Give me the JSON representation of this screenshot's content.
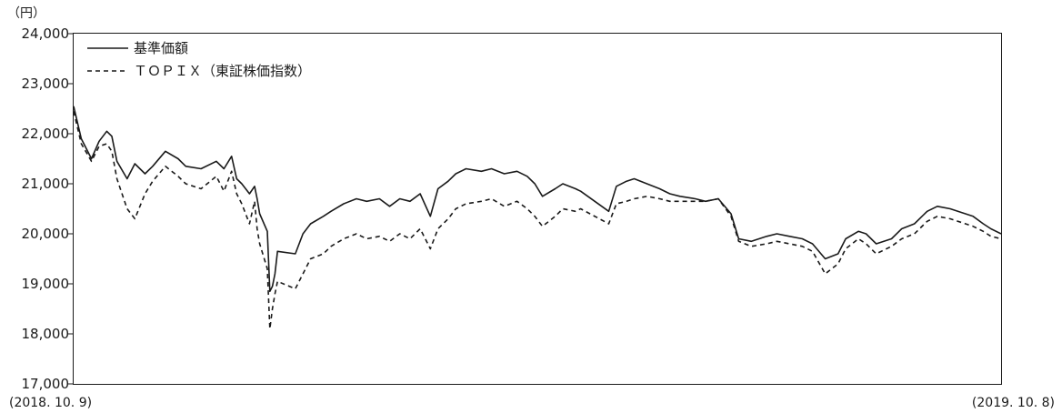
{
  "chart_data": {
    "type": "line",
    "y_unit_label": "（円）",
    "ylim": [
      17000,
      24000
    ],
    "y_ticks": [
      "17,000",
      "18,000",
      "19,000",
      "20,000",
      "21,000",
      "22,000",
      "23,000",
      "24,000"
    ],
    "y_tick_values": [
      17000,
      18000,
      19000,
      20000,
      21000,
      22000,
      23000,
      24000
    ],
    "x_start_label": "(2018. 10. 9)",
    "x_end_label": "(2019. 10. 8)",
    "x_range": [
      "2018-10-09",
      "2019-10-08"
    ],
    "grid": false,
    "legend_placement": "top-left",
    "series": [
      {
        "name": "基準価額",
        "line_style": "solid",
        "color": "#1a1a1a",
        "values": [
          [
            "2018-10-09",
            22550
          ],
          [
            "2018-10-12",
            21900
          ],
          [
            "2018-10-16",
            21500
          ],
          [
            "2018-10-19",
            21850
          ],
          [
            "2018-10-22",
            22050
          ],
          [
            "2018-10-24",
            21950
          ],
          [
            "2018-10-26",
            21450
          ],
          [
            "2018-10-30",
            21100
          ],
          [
            "2018-11-02",
            21400
          ],
          [
            "2018-11-06",
            21200
          ],
          [
            "2018-11-09",
            21350
          ],
          [
            "2018-11-14",
            21650
          ],
          [
            "2018-11-19",
            21500
          ],
          [
            "2018-11-22",
            21350
          ],
          [
            "2018-11-28",
            21300
          ],
          [
            "2018-12-04",
            21450
          ],
          [
            "2018-12-07",
            21300
          ],
          [
            "2018-12-10",
            21550
          ],
          [
            "2018-12-12",
            21100
          ],
          [
            "2018-12-14",
            21000
          ],
          [
            "2018-12-17",
            20800
          ],
          [
            "2018-12-19",
            20950
          ],
          [
            "2018-12-20",
            20700
          ],
          [
            "2018-12-21",
            20400
          ],
          [
            "2018-12-24",
            20050
          ],
          [
            "2018-12-25",
            18850
          ],
          [
            "2018-12-26",
            18950
          ],
          [
            "2018-12-27",
            19200
          ],
          [
            "2018-12-28",
            19650
          ],
          [
            "2019-01-04",
            19600
          ],
          [
            "2019-01-07",
            20000
          ],
          [
            "2019-01-10",
            20200
          ],
          [
            "2019-01-15",
            20350
          ],
          [
            "2019-01-18",
            20450
          ],
          [
            "2019-01-23",
            20600
          ],
          [
            "2019-01-28",
            20700
          ],
          [
            "2019-02-01",
            20650
          ],
          [
            "2019-02-06",
            20700
          ],
          [
            "2019-02-10",
            20550
          ],
          [
            "2019-02-14",
            20700
          ],
          [
            "2019-02-18",
            20650
          ],
          [
            "2019-02-22",
            20800
          ],
          [
            "2019-02-26",
            20350
          ],
          [
            "2019-03-01",
            20900
          ],
          [
            "2019-03-05",
            21050
          ],
          [
            "2019-03-08",
            21200
          ],
          [
            "2019-03-12",
            21300
          ],
          [
            "2019-03-18",
            21250
          ],
          [
            "2019-03-22",
            21300
          ],
          [
            "2019-03-27",
            21200
          ],
          [
            "2019-04-01",
            21250
          ],
          [
            "2019-04-05",
            21150
          ],
          [
            "2019-04-08",
            21000
          ],
          [
            "2019-04-11",
            20750
          ],
          [
            "2019-04-16",
            20900
          ],
          [
            "2019-04-19",
            21000
          ],
          [
            "2019-04-24",
            20900
          ],
          [
            "2019-04-26",
            20850
          ],
          [
            "2019-05-07",
            20450
          ],
          [
            "2019-05-10",
            20950
          ],
          [
            "2019-05-14",
            21050
          ],
          [
            "2019-05-17",
            21100
          ],
          [
            "2019-05-22",
            21000
          ],
          [
            "2019-05-27",
            20900
          ],
          [
            "2019-05-31",
            20800
          ],
          [
            "2019-06-04",
            20750
          ],
          [
            "2019-06-10",
            20700
          ],
          [
            "2019-06-14",
            20650
          ],
          [
            "2019-06-19",
            20700
          ],
          [
            "2019-06-24",
            20400
          ],
          [
            "2019-06-27",
            19900
          ],
          [
            "2019-07-02",
            19850
          ],
          [
            "2019-07-08",
            19950
          ],
          [
            "2019-07-12",
            20000
          ],
          [
            "2019-07-17",
            19950
          ],
          [
            "2019-07-22",
            19900
          ],
          [
            "2019-07-26",
            19800
          ],
          [
            "2019-07-31",
            19500
          ],
          [
            "2019-08-05",
            19600
          ],
          [
            "2019-08-08",
            19900
          ],
          [
            "2019-08-13",
            20050
          ],
          [
            "2019-08-16",
            20000
          ],
          [
            "2019-08-20",
            19800
          ],
          [
            "2019-08-26",
            19900
          ],
          [
            "2019-08-30",
            20100
          ],
          [
            "2019-09-04",
            20200
          ],
          [
            "2019-09-09",
            20450
          ],
          [
            "2019-09-13",
            20550
          ],
          [
            "2019-09-18",
            20500
          ],
          [
            "2019-09-24",
            20400
          ],
          [
            "2019-09-27",
            20350
          ],
          [
            "2019-10-01",
            20200
          ],
          [
            "2019-10-04",
            20100
          ],
          [
            "2019-10-08",
            20000
          ]
        ]
      },
      {
        "name": "ＴＯＰＩＸ（東証株価指数）",
        "line_style": "dashed",
        "color": "#1a1a1a",
        "values": [
          [
            "2018-10-09",
            22450
          ],
          [
            "2018-10-12",
            21800
          ],
          [
            "2018-10-16",
            21450
          ],
          [
            "2018-10-19",
            21750
          ],
          [
            "2018-10-22",
            21800
          ],
          [
            "2018-10-24",
            21650
          ],
          [
            "2018-10-26",
            21100
          ],
          [
            "2018-10-30",
            20500
          ],
          [
            "2018-11-02",
            20300
          ],
          [
            "2018-11-06",
            20800
          ],
          [
            "2018-11-09",
            21050
          ],
          [
            "2018-11-14",
            21350
          ],
          [
            "2018-11-19",
            21150
          ],
          [
            "2018-11-22",
            21000
          ],
          [
            "2018-11-28",
            20900
          ],
          [
            "2018-12-04",
            21150
          ],
          [
            "2018-12-07",
            20850
          ],
          [
            "2018-12-10",
            21250
          ],
          [
            "2018-12-12",
            20800
          ],
          [
            "2018-12-14",
            20600
          ],
          [
            "2018-12-17",
            20200
          ],
          [
            "2018-12-19",
            20650
          ],
          [
            "2018-12-20",
            20100
          ],
          [
            "2018-12-21",
            19800
          ],
          [
            "2018-12-24",
            19300
          ],
          [
            "2018-12-25",
            18100
          ],
          [
            "2018-12-26",
            18500
          ],
          [
            "2018-12-27",
            18800
          ],
          [
            "2018-12-28",
            19050
          ],
          [
            "2019-01-04",
            18900
          ],
          [
            "2019-01-07",
            19200
          ],
          [
            "2019-01-10",
            19500
          ],
          [
            "2019-01-15",
            19600
          ],
          [
            "2019-01-18",
            19750
          ],
          [
            "2019-01-23",
            19900
          ],
          [
            "2019-01-28",
            20000
          ],
          [
            "2019-02-01",
            19900
          ],
          [
            "2019-02-06",
            19950
          ],
          [
            "2019-02-10",
            19850
          ],
          [
            "2019-02-14",
            20000
          ],
          [
            "2019-02-18",
            19900
          ],
          [
            "2019-02-22",
            20100
          ],
          [
            "2019-02-26",
            19700
          ],
          [
            "2019-03-01",
            20100
          ],
          [
            "2019-03-05",
            20300
          ],
          [
            "2019-03-08",
            20500
          ],
          [
            "2019-03-12",
            20600
          ],
          [
            "2019-03-18",
            20650
          ],
          [
            "2019-03-22",
            20700
          ],
          [
            "2019-03-27",
            20550
          ],
          [
            "2019-04-01",
            20650
          ],
          [
            "2019-04-05",
            20500
          ],
          [
            "2019-04-08",
            20350
          ],
          [
            "2019-04-11",
            20150
          ],
          [
            "2019-04-16",
            20350
          ],
          [
            "2019-04-19",
            20500
          ],
          [
            "2019-04-24",
            20450
          ],
          [
            "2019-04-26",
            20500
          ],
          [
            "2019-05-07",
            20200
          ],
          [
            "2019-05-10",
            20600
          ],
          [
            "2019-05-14",
            20650
          ],
          [
            "2019-05-17",
            20700
          ],
          [
            "2019-05-22",
            20750
          ],
          [
            "2019-05-27",
            20700
          ],
          [
            "2019-05-31",
            20650
          ],
          [
            "2019-06-04",
            20650
          ],
          [
            "2019-06-10",
            20650
          ],
          [
            "2019-06-14",
            20650
          ],
          [
            "2019-06-19",
            20700
          ],
          [
            "2019-06-24",
            20350
          ],
          [
            "2019-06-27",
            19850
          ],
          [
            "2019-07-02",
            19750
          ],
          [
            "2019-07-08",
            19800
          ],
          [
            "2019-07-12",
            19850
          ],
          [
            "2019-07-17",
            19800
          ],
          [
            "2019-07-22",
            19750
          ],
          [
            "2019-07-26",
            19650
          ],
          [
            "2019-07-31",
            19200
          ],
          [
            "2019-08-05",
            19400
          ],
          [
            "2019-08-08",
            19700
          ],
          [
            "2019-08-13",
            19900
          ],
          [
            "2019-08-16",
            19800
          ],
          [
            "2019-08-20",
            19600
          ],
          [
            "2019-08-26",
            19750
          ],
          [
            "2019-08-30",
            19900
          ],
          [
            "2019-09-04",
            20000
          ],
          [
            "2019-09-09",
            20250
          ],
          [
            "2019-09-13",
            20350
          ],
          [
            "2019-09-18",
            20300
          ],
          [
            "2019-09-24",
            20200
          ],
          [
            "2019-09-27",
            20150
          ],
          [
            "2019-10-01",
            20050
          ],
          [
            "2019-10-04",
            19950
          ],
          [
            "2019-10-08",
            19900
          ]
        ]
      }
    ]
  }
}
